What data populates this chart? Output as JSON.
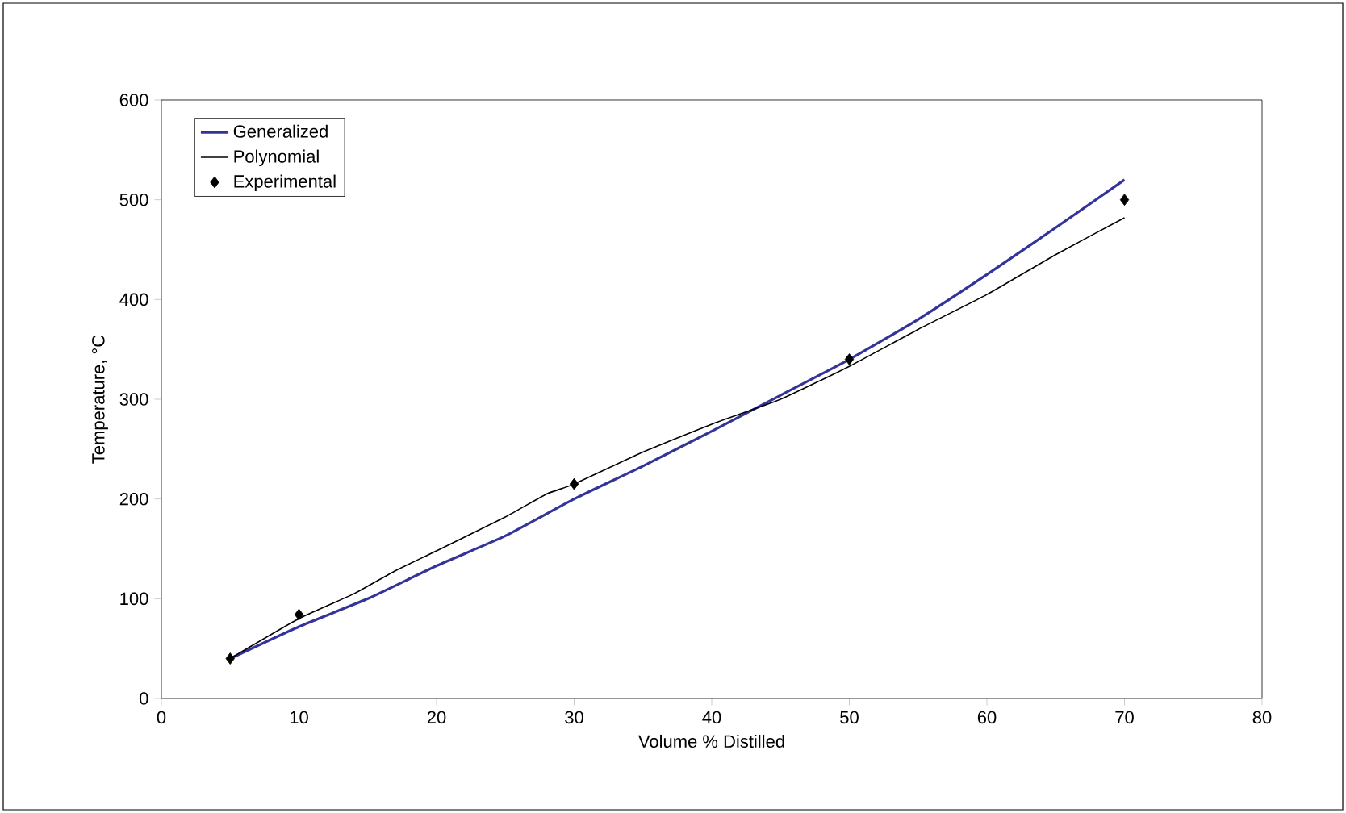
{
  "chart_data": {
    "type": "line",
    "xlabel": "Volume % Distilled",
    "ylabel": "Temperature, °C",
    "xlim": [
      0,
      80
    ],
    "ylim": [
      0,
      600
    ],
    "xticks": [
      0,
      10,
      20,
      30,
      40,
      50,
      60,
      70,
      80
    ],
    "yticks": [
      0,
      100,
      200,
      300,
      400,
      500,
      600
    ],
    "legend": "top left",
    "grid": false,
    "series": [
      {
        "name": "Generalized",
        "color": "#333399",
        "x": [
          5,
          10,
          15,
          20,
          25,
          30,
          35,
          40,
          45,
          50,
          55,
          60,
          65,
          70
        ],
        "values": [
          40,
          72,
          100,
          133,
          163,
          200,
          233,
          268,
          304,
          340,
          380,
          425,
          472,
          520
        ]
      },
      {
        "name": "Polynomial",
        "color": "#000000",
        "x": [
          5,
          10,
          14,
          17,
          20,
          25,
          28,
          30,
          35,
          40,
          45,
          50,
          55,
          60,
          65,
          70
        ],
        "values": [
          40,
          80,
          105,
          128,
          148,
          182,
          205,
          215,
          247,
          275,
          300,
          333,
          370,
          405,
          445,
          482
        ]
      },
      {
        "name": "Experimental",
        "color": "#000000",
        "type": "scatter",
        "marker": "diamond",
        "x": [
          5,
          10,
          30,
          50,
          70
        ],
        "values": [
          40,
          84,
          215,
          340,
          500
        ]
      }
    ]
  }
}
